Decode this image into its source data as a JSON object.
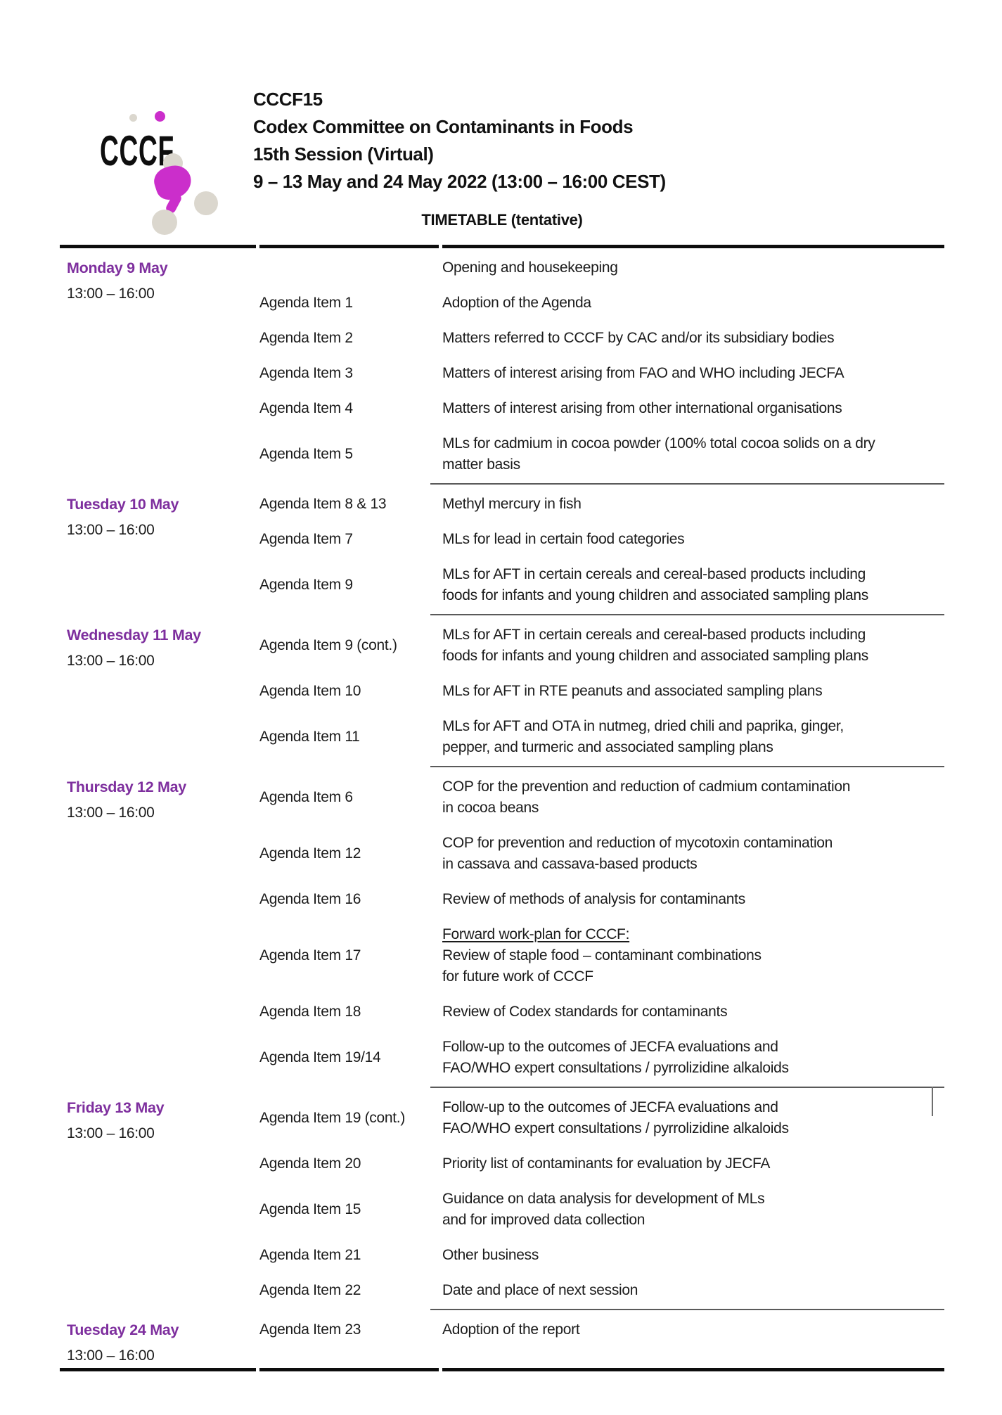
{
  "logo": {
    "text": "CCCF"
  },
  "header": {
    "lines": [
      "CCCF15",
      "Codex Committee on Contaminants in Foods",
      "15th Session (Virtual)",
      "9 – 13 May and 24 May 2022 (13:00 – 16:00 CEST)"
    ]
  },
  "title": "TIMETABLE (tentative)",
  "colors": {
    "day_heading": "#7e2f9e",
    "logo_magenta": "#cb2ecb",
    "logo_gray": "#dbd7ce",
    "rule_thick": "#0d0d0d",
    "rule_thin": "#5a5a5a"
  },
  "sections": [
    {
      "day": "Monday 9 May",
      "time": "13:00 – 16:00",
      "rows": [
        {
          "item": "",
          "desc": "Opening and housekeeping"
        },
        {
          "item": "Agenda Item 1",
          "desc": "Adoption of the Agenda"
        },
        {
          "item": "Agenda Item 2",
          "desc": "Matters referred to CCCF by CAC and/or its subsidiary bodies"
        },
        {
          "item": "Agenda Item 3",
          "desc": "Matters of interest arising from FAO and WHO including JECFA"
        },
        {
          "item": "Agenda Item 4",
          "desc": "Matters of interest arising from other international organisations"
        },
        {
          "item": "Agenda Item 5",
          "desc": "MLs for cadmium in cocoa powder (100% total cocoa solids on a dry\nmatter basis"
        }
      ]
    },
    {
      "day": "Tuesday 10 May",
      "time": "13:00 – 16:00",
      "rows": [
        {
          "item": "Agenda Item 8 & 13",
          "desc": "Methyl mercury in fish"
        },
        {
          "item": "Agenda Item 7",
          "desc": "MLs for lead in certain food categories"
        },
        {
          "item": "Agenda Item 9",
          "desc": "MLs for AFT in certain cereals and cereal-based products including\nfoods for infants and young children and associated sampling plans"
        }
      ]
    },
    {
      "day": "Wednesday 11 May",
      "time": "13:00 – 16:00",
      "rows": [
        {
          "item": "Agenda Item 9 (cont.)",
          "desc": "MLs for AFT in certain cereals and cereal-based products including\nfoods for infants and young children and associated sampling plans"
        },
        {
          "item": "Agenda Item 10",
          "desc": "MLs for AFT in RTE peanuts and associated sampling plans"
        },
        {
          "item": "Agenda Item 11",
          "desc": "MLs for AFT and OTA in nutmeg, dried chili and paprika, ginger,\npepper, and turmeric and associated sampling plans"
        }
      ]
    },
    {
      "day": "Thursday 12 May",
      "time": "13:00 – 16:00",
      "rows": [
        {
          "item": "Agenda Item 6",
          "desc": "COP for the prevention and reduction of cadmium contamination\nin cocoa beans"
        },
        {
          "item": "Agenda Item 12",
          "desc": "COP for prevention and reduction of mycotoxin contamination\nin cassava and cassava-based products"
        },
        {
          "item": "Agenda Item 16",
          "desc": "Review of methods of analysis for contaminants"
        },
        {
          "item": "Agenda Item 17",
          "desc": "Forward work-plan for CCCF:\nReview of staple food – contaminant combinations\nfor future work of CCCF",
          "underline_first": true
        },
        {
          "item": "Agenda Item 18",
          "desc": "Review of Codex standards for contaminants"
        },
        {
          "item": "Agenda Item 19/14",
          "desc": "Follow-up to the outcomes of JECFA evaluations and\nFAO/WHO expert consultations / pyrrolizidine alkaloids"
        }
      ]
    },
    {
      "day": "Friday 13 May",
      "time": "13:00 – 16:00",
      "rows": [
        {
          "item": "Agenda Item 19 (cont.)",
          "desc": "Follow-up to the outcomes of JECFA evaluations and\nFAO/WHO expert consultations / pyrrolizidine alkaloids"
        },
        {
          "item": "Agenda Item 20",
          "desc": "Priority list of contaminants for evaluation by JECFA"
        },
        {
          "item": "Agenda Item 15",
          "desc": "Guidance on data analysis for development of MLs\nand for improved data collection"
        },
        {
          "item": "Agenda Item 21",
          "desc": "Other business"
        },
        {
          "item": "Agenda Item 22",
          "desc": "Date and place of next session"
        }
      ]
    },
    {
      "day": "Tuesday 24 May",
      "time": "13:00 – 16:00",
      "rows": [
        {
          "item": "Agenda Item 23",
          "desc": "Adoption of the report"
        }
      ]
    }
  ]
}
